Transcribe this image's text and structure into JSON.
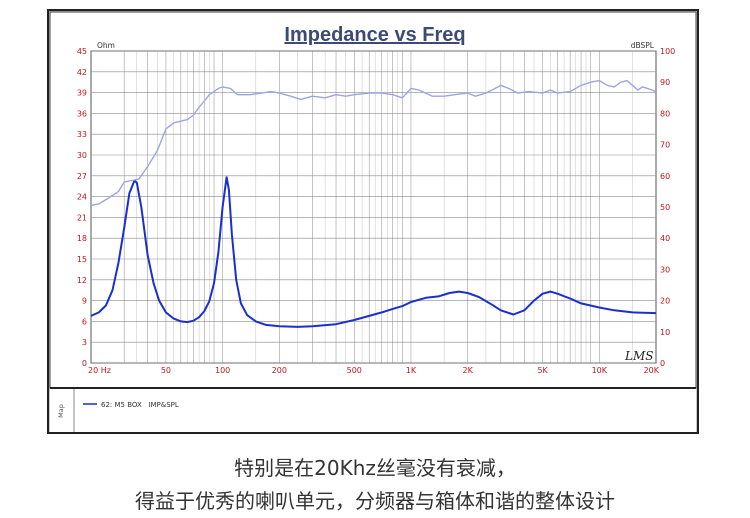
{
  "chart_data": {
    "type": "line",
    "title": "Impedance vs Freq",
    "left_unit": "Ohm",
    "right_unit": "dBSPL",
    "x_scale": "log",
    "x_range": [
      20,
      20000
    ],
    "x_ticks": [
      20,
      50,
      100,
      200,
      500,
      1000,
      2000,
      5000,
      10000,
      20000
    ],
    "x_tick_labels": [
      "20 Hz",
      "50",
      "100",
      "200",
      "500",
      "1K",
      "2K",
      "5K",
      "10K",
      "20K"
    ],
    "y_left_range": [
      0,
      45
    ],
    "y_left_ticks": [
      0,
      3,
      6,
      9,
      12,
      15,
      18,
      21,
      24,
      27,
      30,
      33,
      36,
      39,
      42,
      45
    ],
    "y_right_range": [
      0,
      100
    ],
    "y_right_ticks": [
      0,
      10,
      20,
      30,
      40,
      50,
      60,
      70,
      80,
      90,
      100
    ],
    "grid": true,
    "legend_text": "62: M5 BOX   IMP&SPL",
    "legend_side_label": "Map",
    "watermark": "LMS",
    "colors": {
      "impedance": "#1a2fd0",
      "spl": "#9fa3e6",
      "grid": "#8a8a8a",
      "title": "#3d4a78",
      "axis_text": "#c0161c"
    },
    "series": [
      {
        "name": "Impedance",
        "axis": "left",
        "points": [
          [
            20,
            6.8
          ],
          [
            22,
            7.3
          ],
          [
            24,
            8.3
          ],
          [
            26,
            10.5
          ],
          [
            28,
            14.5
          ],
          [
            30,
            19.5
          ],
          [
            32,
            24.5
          ],
          [
            34,
            26.3
          ],
          [
            35,
            26.0
          ],
          [
            37,
            22.5
          ],
          [
            40,
            15.5
          ],
          [
            43,
            11.5
          ],
          [
            46,
            9.0
          ],
          [
            50,
            7.3
          ],
          [
            55,
            6.4
          ],
          [
            60,
            6.0
          ],
          [
            65,
            5.9
          ],
          [
            70,
            6.1
          ],
          [
            75,
            6.6
          ],
          [
            80,
            7.5
          ],
          [
            85,
            8.9
          ],
          [
            90,
            11.5
          ],
          [
            95,
            16.0
          ],
          [
            100,
            22.5
          ],
          [
            105,
            26.8
          ],
          [
            108,
            25.0
          ],
          [
            112,
            18.5
          ],
          [
            118,
            12.0
          ],
          [
            125,
            8.6
          ],
          [
            135,
            6.9
          ],
          [
            150,
            6.0
          ],
          [
            170,
            5.5
          ],
          [
            200,
            5.3
          ],
          [
            250,
            5.2
          ],
          [
            300,
            5.3
          ],
          [
            400,
            5.6
          ],
          [
            500,
            6.2
          ],
          [
            600,
            6.8
          ],
          [
            700,
            7.3
          ],
          [
            800,
            7.8
          ],
          [
            900,
            8.2
          ],
          [
            1000,
            8.8
          ],
          [
            1200,
            9.4
          ],
          [
            1400,
            9.6
          ],
          [
            1600,
            10.1
          ],
          [
            1800,
            10.3
          ],
          [
            2000,
            10.1
          ],
          [
            2300,
            9.5
          ],
          [
            2700,
            8.4
          ],
          [
            3000,
            7.6
          ],
          [
            3500,
            7.0
          ],
          [
            4000,
            7.6
          ],
          [
            4500,
            9.0
          ],
          [
            5000,
            10.0
          ],
          [
            5500,
            10.3
          ],
          [
            6000,
            10.0
          ],
          [
            7000,
            9.3
          ],
          [
            8000,
            8.6
          ],
          [
            10000,
            8.0
          ],
          [
            12000,
            7.6
          ],
          [
            15000,
            7.3
          ],
          [
            20000,
            7.2
          ]
        ]
      },
      {
        "name": "SPL",
        "axis": "right",
        "points": [
          [
            20,
            50.5
          ],
          [
            22,
            51
          ],
          [
            25,
            53
          ],
          [
            28,
            55
          ],
          [
            30,
            58
          ],
          [
            33,
            58.5
          ],
          [
            36,
            59
          ],
          [
            40,
            63
          ],
          [
            45,
            68
          ],
          [
            50,
            75
          ],
          [
            55,
            77
          ],
          [
            60,
            77.5
          ],
          [
            65,
            78
          ],
          [
            70,
            79.5
          ],
          [
            75,
            82
          ],
          [
            80,
            84
          ],
          [
            85,
            86
          ],
          [
            90,
            87
          ],
          [
            95,
            88
          ],
          [
            100,
            88.5
          ],
          [
            110,
            88
          ],
          [
            120,
            86
          ],
          [
            140,
            86
          ],
          [
            160,
            86.5
          ],
          [
            180,
            87
          ],
          [
            200,
            86.5
          ],
          [
            230,
            85.5
          ],
          [
            260,
            84.5
          ],
          [
            300,
            85.5
          ],
          [
            350,
            85
          ],
          [
            400,
            86
          ],
          [
            450,
            85.5
          ],
          [
            500,
            86
          ],
          [
            600,
            86.5
          ],
          [
            700,
            86.5
          ],
          [
            800,
            86
          ],
          [
            900,
            85
          ],
          [
            1000,
            88
          ],
          [
            1100,
            87.5
          ],
          [
            1300,
            85.5
          ],
          [
            1500,
            85.5
          ],
          [
            1700,
            86
          ],
          [
            2000,
            86.5
          ],
          [
            2200,
            85.5
          ],
          [
            2500,
            86.5
          ],
          [
            2800,
            88
          ],
          [
            3000,
            89
          ],
          [
            3300,
            88
          ],
          [
            3700,
            86.5
          ],
          [
            4200,
            87
          ],
          [
            5000,
            86.5
          ],
          [
            5500,
            87.5
          ],
          [
            6000,
            86.5
          ],
          [
            7000,
            87
          ],
          [
            8000,
            89
          ],
          [
            9000,
            90
          ],
          [
            10000,
            90.5
          ],
          [
            11000,
            89
          ],
          [
            12000,
            88.5
          ],
          [
            13000,
            90
          ],
          [
            14000,
            90.5
          ],
          [
            15000,
            89
          ],
          [
            16000,
            87.5
          ],
          [
            17000,
            88.5
          ],
          [
            18000,
            88
          ],
          [
            20000,
            87
          ]
        ]
      }
    ]
  },
  "caption": {
    "line1": "特别是在20Khz丝毫没有衰减，",
    "line2": "得益于优秀的喇叭单元，分频器与箱体和谐的整体设计"
  }
}
